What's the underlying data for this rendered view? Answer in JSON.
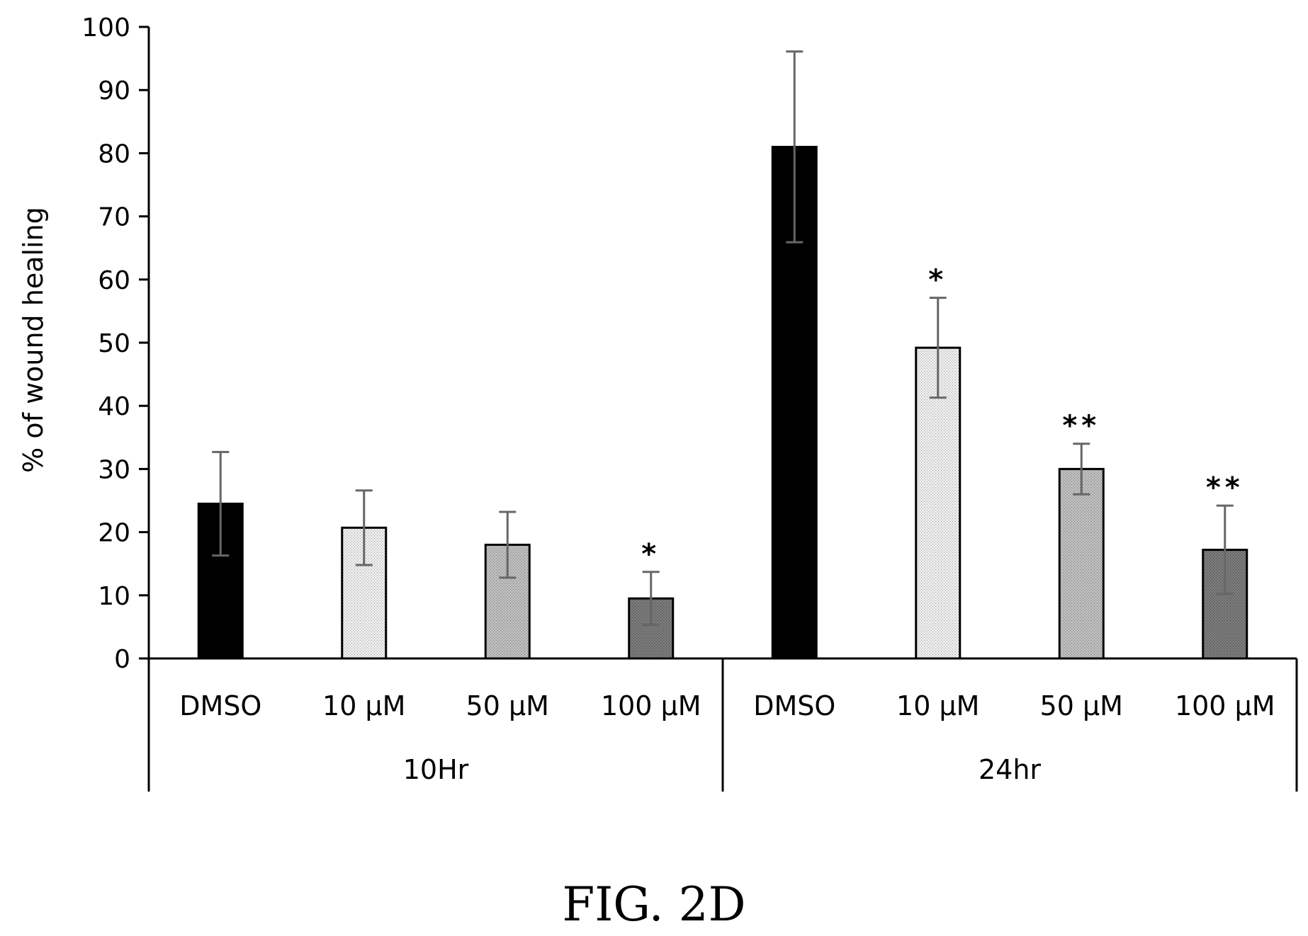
{
  "chart_data": {
    "type": "bar",
    "title": "",
    "xlabel": "",
    "ylabel": "% of wound healing",
    "ylim": [
      0,
      100
    ],
    "yticks": [
      0,
      10,
      20,
      30,
      40,
      50,
      60,
      70,
      80,
      90,
      100
    ],
    "grid": false,
    "legend": "none",
    "groups": [
      {
        "label": "10Hr",
        "bars": [
          {
            "category": "DMSO",
            "value": 24.5,
            "error": 8.2,
            "significance": "",
            "color": "#000000"
          },
          {
            "category": "10 µM",
            "value": 20.7,
            "error": 5.9,
            "significance": "",
            "color": "#e4e4e4"
          },
          {
            "category": "50 µM",
            "value": 18.0,
            "error": 5.2,
            "significance": "",
            "color": "#b3b3b3"
          },
          {
            "category": "100 µM",
            "value": 9.5,
            "error": 4.2,
            "significance": "*",
            "color": "#737373"
          }
        ]
      },
      {
        "label": "24hr",
        "bars": [
          {
            "category": "DMSO",
            "value": 81.0,
            "error": 15.1,
            "significance": "",
            "color": "#000000"
          },
          {
            "category": "10 µM",
            "value": 49.2,
            "error": 7.9,
            "significance": "*",
            "color": "#e4e4e4"
          },
          {
            "category": "50 µM",
            "value": 30.0,
            "error": 4.0,
            "significance": "**",
            "color": "#b3b3b3"
          },
          {
            "category": "100 µM",
            "value": 17.2,
            "error": 7.0,
            "significance": "**",
            "color": "#737373"
          }
        ]
      }
    ]
  },
  "figure": {
    "caption": "FIG. 2D"
  }
}
